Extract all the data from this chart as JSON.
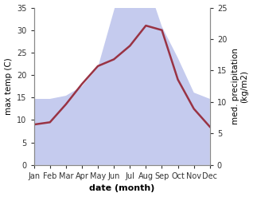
{
  "months": [
    "Jan",
    "Feb",
    "Mar",
    "Apr",
    "May",
    "Jun",
    "Jul",
    "Aug",
    "Sep",
    "Oct",
    "Nov",
    "Dec"
  ],
  "temp": [
    9.0,
    9.5,
    13.5,
    18.0,
    22.0,
    23.5,
    26.5,
    31.0,
    30.0,
    19.0,
    12.5,
    8.5
  ],
  "precip": [
    10.5,
    10.5,
    11.0,
    12.5,
    15.5,
    24.5,
    33.0,
    29.5,
    22.0,
    17.0,
    11.5,
    10.5
  ],
  "temp_color": "#993344",
  "precip_fill_color": "#c5cbee",
  "left_ylabel": "max temp (C)",
  "right_ylabel": "med. precipitation\n(kg/m2)",
  "xlabel": "date (month)",
  "ylim_left": [
    0,
    35
  ],
  "ylim_right": [
    0,
    35
  ],
  "right_ytick_vals": [
    0,
    5,
    10,
    15,
    20,
    25
  ],
  "right_ytick_labels": [
    "0",
    "5",
    "10",
    "15",
    "20",
    "25"
  ],
  "left_yticks": [
    0,
    5,
    10,
    15,
    20,
    25,
    30,
    35
  ],
  "precip_scale": 1.4
}
